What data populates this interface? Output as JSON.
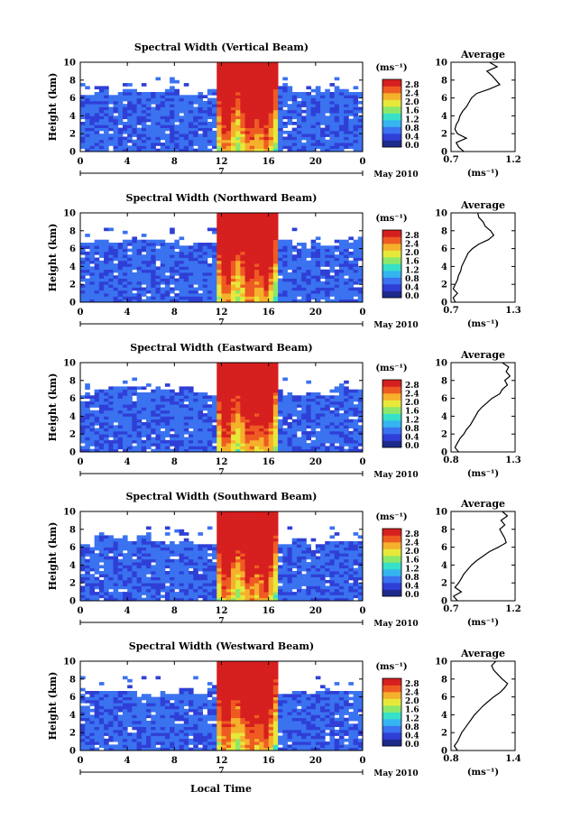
{
  "figure": {
    "xlabel": "Local Time",
    "date_label": "May 2010",
    "day_label": "7"
  },
  "colorbar": {
    "unit": "(ms⁻¹)",
    "ticks": [
      "0.0",
      "0.4",
      "0.8",
      "1.2",
      "1.6",
      "2.0",
      "2.4",
      "2.8"
    ],
    "colors": [
      "#1d2a8c",
      "#2f3fd6",
      "#3a72f0",
      "#36b4f0",
      "#37e0c8",
      "#8de86a",
      "#e7e83a",
      "#f5b02c",
      "#ee5b22",
      "#d61f1f"
    ]
  },
  "chart_data": [
    {
      "type": "heatmap",
      "title": "Spectral Width (Vertical Beam)",
      "ylabel": "Height (km)",
      "x_ticks": [
        "0",
        "4",
        "8",
        "12",
        "16",
        "20",
        "0"
      ],
      "y_ticks": [
        "0",
        "2",
        "4",
        "6",
        "8",
        "10"
      ],
      "xlim": [
        0,
        24
      ],
      "ylim": [
        0,
        10
      ],
      "profile": {
        "title": "Average",
        "xlabel": "(ms⁻¹)",
        "x_ticks": [
          "0.7",
          "1.2"
        ],
        "xlim": [
          0.7,
          1.2
        ],
        "y_ticks": [
          "0",
          "2",
          "4",
          "6",
          "8",
          "10"
        ],
        "heights": [
          0,
          0.5,
          1,
          1.5,
          2,
          2.5,
          3,
          3.5,
          4,
          4.5,
          5,
          5.5,
          6,
          6.5,
          7,
          7.5,
          8,
          8.5,
          9,
          9.5,
          10
        ],
        "values": [
          0.8,
          0.76,
          0.74,
          0.82,
          0.75,
          0.73,
          0.74,
          0.76,
          0.77,
          0.79,
          0.82,
          0.84,
          0.86,
          0.9,
          1.0,
          1.08,
          1.05,
          1.02,
          0.98,
          1.06,
          1.0
        ]
      }
    },
    {
      "type": "heatmap",
      "title": "Spectral Width (Northward Beam)",
      "ylabel": "Height (km)",
      "x_ticks": [
        "0",
        "4",
        "8",
        "12",
        "16",
        "20",
        "0"
      ],
      "y_ticks": [
        "0",
        "2",
        "4",
        "6",
        "8",
        "10"
      ],
      "xlim": [
        0,
        24
      ],
      "ylim": [
        0,
        10
      ],
      "profile": {
        "title": "Average",
        "xlabel": "(ms⁻¹)",
        "x_ticks": [
          "0.7",
          "1.3"
        ],
        "xlim": [
          0.7,
          1.3
        ],
        "y_ticks": [
          "0",
          "2",
          "4",
          "6",
          "8",
          "10"
        ],
        "heights": [
          0,
          0.5,
          1,
          1.5,
          2,
          2.5,
          3,
          3.5,
          4,
          4.5,
          5,
          5.5,
          6,
          6.5,
          7,
          7.5,
          8,
          8.5,
          9,
          9.5,
          10
        ],
        "values": [
          0.74,
          0.72,
          0.76,
          0.72,
          0.74,
          0.76,
          0.77,
          0.79,
          0.8,
          0.82,
          0.84,
          0.86,
          0.9,
          0.96,
          1.05,
          1.1,
          1.07,
          1.02,
          1.0,
          0.96,
          0.95
        ]
      }
    },
    {
      "type": "heatmap",
      "title": "Spectral Width (Eastward Beam)",
      "ylabel": "Height (km)",
      "x_ticks": [
        "0",
        "4",
        "8",
        "12",
        "16",
        "20",
        "0"
      ],
      "y_ticks": [
        "0",
        "2",
        "4",
        "6",
        "8",
        "10"
      ],
      "xlim": [
        0,
        24
      ],
      "ylim": [
        0,
        10
      ],
      "profile": {
        "title": "Average",
        "xlabel": "(ms⁻¹)",
        "x_ticks": [
          "0.8",
          "1.3"
        ],
        "xlim": [
          0.8,
          1.3
        ],
        "y_ticks": [
          "0",
          "2",
          "4",
          "6",
          "8",
          "10"
        ],
        "heights": [
          0,
          0.5,
          1,
          1.5,
          2,
          2.5,
          3,
          3.5,
          4,
          4.5,
          5,
          5.5,
          6,
          6.5,
          7,
          7.5,
          8,
          8.5,
          9,
          9.5,
          10
        ],
        "values": [
          0.86,
          0.83,
          0.85,
          0.87,
          0.9,
          0.92,
          0.95,
          0.97,
          0.99,
          1.01,
          1.04,
          1.08,
          1.12,
          1.18,
          1.2,
          1.24,
          1.22,
          1.26,
          1.23,
          1.25,
          1.2
        ]
      }
    },
    {
      "type": "heatmap",
      "title": "Spectral Width (Southward Beam)",
      "ylabel": "Height (km)",
      "x_ticks": [
        "0",
        "4",
        "8",
        "12",
        "16",
        "20",
        "0"
      ],
      "y_ticks": [
        "0",
        "2",
        "4",
        "6",
        "8",
        "10"
      ],
      "xlim": [
        0,
        24
      ],
      "ylim": [
        0,
        10
      ],
      "profile": {
        "title": "Average",
        "xlabel": "(ms⁻¹)",
        "x_ticks": [
          "0.7",
          "1.2"
        ],
        "xlim": [
          0.7,
          1.2
        ],
        "y_ticks": [
          "0",
          "2",
          "4",
          "6",
          "8",
          "10"
        ],
        "heights": [
          0,
          0.5,
          1,
          1.5,
          2,
          2.5,
          3,
          3.5,
          4,
          4.5,
          5,
          5.5,
          6,
          6.5,
          7,
          7.5,
          8,
          8.5,
          9,
          9.5,
          10
        ],
        "values": [
          0.75,
          0.72,
          0.78,
          0.73,
          0.76,
          0.78,
          0.8,
          0.83,
          0.86,
          0.9,
          0.95,
          1.0,
          1.07,
          1.13,
          1.12,
          1.1,
          1.08,
          1.12,
          1.09,
          1.14,
          1.1
        ]
      }
    },
    {
      "type": "heatmap",
      "title": "Spectral Width (Westward Beam)",
      "ylabel": "Height (km)",
      "x_ticks": [
        "0",
        "4",
        "8",
        "12",
        "16",
        "20",
        "0"
      ],
      "y_ticks": [
        "0",
        "2",
        "4",
        "6",
        "8",
        "10"
      ],
      "xlim": [
        0,
        24
      ],
      "ylim": [
        0,
        10
      ],
      "profile": {
        "title": "Average",
        "xlabel": "(ms⁻¹)",
        "x_ticks": [
          "0.8",
          "1.4"
        ],
        "xlim": [
          0.8,
          1.4
        ],
        "y_ticks": [
          "0",
          "2",
          "4",
          "6",
          "8",
          "10"
        ],
        "heights": [
          0,
          0.5,
          1,
          1.5,
          2,
          2.5,
          3,
          3.5,
          4,
          4.5,
          5,
          5.5,
          6,
          6.5,
          7,
          7.5,
          8,
          8.5,
          9,
          9.5,
          10
        ],
        "values": [
          0.86,
          0.83,
          0.86,
          0.88,
          0.9,
          0.93,
          0.96,
          0.99,
          1.02,
          1.06,
          1.1,
          1.15,
          1.2,
          1.26,
          1.3,
          1.33,
          1.28,
          1.24,
          1.2,
          1.18,
          1.22
        ]
      }
    }
  ]
}
